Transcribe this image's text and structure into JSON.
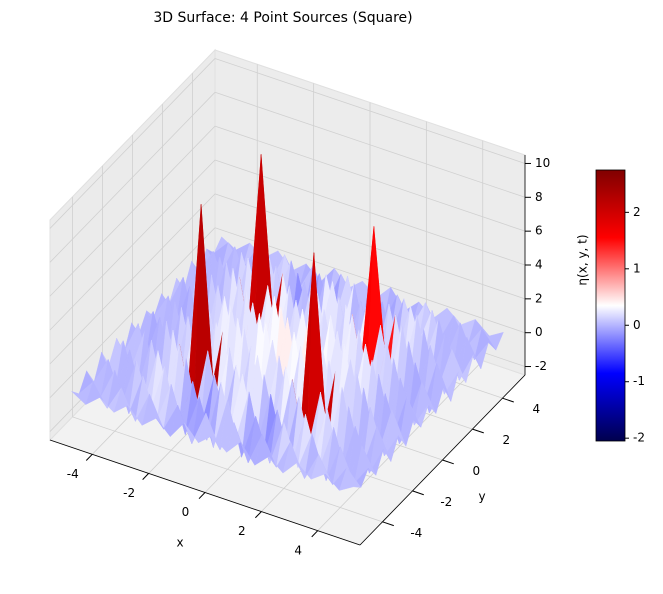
{
  "chart_data": {
    "type": "surface",
    "title": "3D Surface: 4 Point Sources (Square)",
    "x_label": "x",
    "y_label": "y",
    "colorbar_label": "η(x, y, t)",
    "colormap": "seismic",
    "xlim": [
      -5.5,
      5.5
    ],
    "ylim": [
      -5.5,
      5.5
    ],
    "zlim": [
      -2.5,
      10.5
    ],
    "xticks": [
      -4,
      -2,
      0,
      2,
      4
    ],
    "yticks": [
      -4,
      -2,
      0,
      2,
      4
    ],
    "zticks": [
      -2,
      0,
      2,
      4,
      6,
      8,
      10
    ],
    "clim": [
      -2.05,
      2.75
    ],
    "cticks": [
      -2,
      -1,
      0,
      1,
      2
    ],
    "x": [
      -5,
      -4.5,
      -4,
      -3.5,
      -3,
      -2.5,
      -2,
      -1.5,
      -1,
      -0.5,
      0,
      0.5,
      1,
      1.5,
      2,
      2.5,
      3,
      3.5,
      4,
      4.5,
      5
    ],
    "y": [
      -5,
      -4.5,
      -4,
      -3.5,
      -3,
      -2.5,
      -2,
      -1.5,
      -1,
      -0.5,
      0,
      0.5,
      1,
      1.5,
      2,
      2.5,
      3,
      3.5,
      4,
      4.5,
      5
    ],
    "z": [
      [
        0.2,
        -0.3,
        0.4,
        -0.2,
        0.5,
        -0.4,
        0.3,
        -0.5,
        0.6,
        -0.3,
        0.4,
        -0.3,
        0.6,
        -0.5,
        0.3,
        -0.4,
        0.5,
        -0.2,
        0.4,
        -0.3,
        0.2
      ],
      [
        -0.4,
        0.6,
        -0.7,
        0.8,
        -0.9,
        1.0,
        -0.8,
        0.9,
        -1.1,
        1.0,
        -0.9,
        1.0,
        -1.1,
        0.9,
        -0.8,
        1.0,
        -0.9,
        0.8,
        -0.7,
        0.6,
        -0.3
      ],
      [
        0.5,
        -0.8,
        1.1,
        -1.2,
        1.3,
        -1.0,
        1.4,
        -1.3,
        1.2,
        -1.5,
        1.6,
        -1.5,
        1.2,
        -1.3,
        1.4,
        -1.0,
        1.3,
        -1.2,
        1.1,
        -0.8,
        0.4
      ],
      [
        -0.6,
        1.0,
        -1.3,
        1.5,
        -1.2,
        1.7,
        -1.6,
        1.4,
        -1.8,
        1.9,
        -1.4,
        1.9,
        -1.8,
        1.4,
        -1.6,
        1.7,
        -1.2,
        1.5,
        -1.3,
        1.0,
        -0.5
      ],
      [
        0.7,
        -1.1,
        1.4,
        -1.6,
        1.9,
        -1.5,
        2.0,
        -1.9,
        1.6,
        -1.7,
        2.2,
        -1.7,
        1.6,
        -1.9,
        2.0,
        -1.5,
        1.9,
        -1.6,
        1.4,
        -1.1,
        0.6
      ],
      [
        -0.5,
        1.2,
        -1.5,
        1.8,
        -1.7,
        2.1,
        -2.0,
        2.3,
        -1.8,
        2.0,
        -1.6,
        2.0,
        -1.8,
        2.3,
        -2.0,
        2.1,
        -1.7,
        1.8,
        -1.5,
        1.2,
        -0.6
      ],
      [
        0.6,
        -1.0,
        1.6,
        -1.9,
        2.2,
        -1.8,
        10.2,
        -1.7,
        2.3,
        -1.9,
        2.4,
        -1.9,
        2.3,
        -1.7,
        9.6,
        -1.8,
        2.2,
        -1.9,
        1.6,
        -1.0,
        0.5
      ],
      [
        -0.7,
        1.3,
        -1.7,
        2.0,
        -1.9,
        2.4,
        -2.0,
        2.5,
        -2.1,
        2.2,
        -1.8,
        2.2,
        -2.1,
        2.5,
        -2.0,
        2.4,
        -1.9,
        2.0,
        -1.7,
        1.3,
        -0.6
      ],
      [
        0.6,
        -1.2,
        1.5,
        -1.8,
        2.1,
        -2.0,
        2.3,
        -1.9,
        2.6,
        -2.0,
        2.4,
        -2.0,
        2.6,
        -1.9,
        2.3,
        -2.0,
        2.1,
        -1.8,
        1.5,
        -1.2,
        0.5
      ],
      [
        -0.5,
        1.1,
        -1.6,
        1.9,
        -1.7,
        2.2,
        -1.9,
        2.4,
        -2.0,
        2.7,
        -1.9,
        2.7,
        -2.0,
        2.4,
        -1.9,
        2.2,
        -1.7,
        1.9,
        -1.6,
        1.1,
        -0.4
      ],
      [
        0.4,
        -1.0,
        1.5,
        -1.7,
        2.0,
        -1.6,
        2.4,
        -2.0,
        2.5,
        -1.9,
        2.8,
        -1.9,
        2.5,
        -2.0,
        2.4,
        -1.6,
        2.0,
        -1.7,
        1.5,
        -1.0,
        0.5
      ],
      [
        -0.4,
        1.1,
        -1.6,
        1.9,
        -1.7,
        2.2,
        -1.9,
        2.4,
        -2.0,
        2.7,
        -1.9,
        2.7,
        -2.0,
        2.4,
        -1.9,
        2.2,
        -1.7,
        1.9,
        -1.6,
        1.1,
        -0.5
      ],
      [
        0.5,
        -1.2,
        1.5,
        -1.8,
        2.1,
        -2.0,
        2.3,
        -1.9,
        2.6,
        -2.0,
        2.4,
        -2.0,
        2.6,
        -1.9,
        2.3,
        -2.0,
        2.1,
        -1.8,
        1.5,
        -1.2,
        0.6
      ],
      [
        -0.6,
        1.3,
        -1.7,
        2.0,
        -1.9,
        2.4,
        -2.0,
        2.5,
        -2.1,
        2.2,
        -1.8,
        2.2,
        -2.1,
        2.5,
        -2.0,
        2.4,
        -1.9,
        2.0,
        -1.7,
        1.3,
        -0.7
      ],
      [
        0.5,
        -1.0,
        1.6,
        -1.9,
        2.2,
        -1.8,
        9.5,
        -1.7,
        2.3,
        -1.9,
        2.4,
        -1.9,
        2.3,
        -1.7,
        7.5,
        -1.8,
        2.2,
        -1.9,
        1.6,
        -1.0,
        0.6
      ],
      [
        -0.6,
        1.2,
        -1.5,
        1.8,
        -1.7,
        2.1,
        -2.0,
        2.3,
        -1.8,
        2.0,
        -1.6,
        2.0,
        -1.8,
        2.3,
        -2.0,
        2.1,
        -1.7,
        1.8,
        -1.5,
        1.2,
        -0.5
      ],
      [
        0.6,
        -1.1,
        1.4,
        -1.6,
        1.9,
        -1.5,
        2.0,
        -1.9,
        1.6,
        -1.7,
        2.2,
        -1.7,
        1.6,
        -1.9,
        2.0,
        -1.5,
        1.9,
        -1.6,
        1.4,
        -1.1,
        0.7
      ],
      [
        -0.5,
        1.0,
        -1.3,
        1.5,
        -1.2,
        1.7,
        -1.6,
        1.4,
        -1.8,
        1.9,
        -1.4,
        1.9,
        -1.8,
        1.4,
        -1.6,
        1.7,
        -1.2,
        1.5,
        -1.3,
        1.0,
        -0.6
      ],
      [
        0.4,
        -0.8,
        1.1,
        -1.2,
        1.3,
        -1.0,
        1.4,
        -1.3,
        1.2,
        -1.5,
        1.6,
        -1.5,
        1.2,
        -1.3,
        1.4,
        -1.0,
        1.3,
        -1.2,
        1.1,
        -0.8,
        0.5
      ],
      [
        -0.3,
        0.6,
        -0.7,
        0.8,
        -0.9,
        1.0,
        -0.8,
        0.9,
        -1.1,
        1.0,
        -0.9,
        1.0,
        -1.1,
        0.9,
        -0.8,
        1.0,
        -0.9,
        0.8,
        -0.7,
        0.6,
        -0.4
      ],
      [
        0.2,
        -0.3,
        0.4,
        -0.2,
        0.5,
        -0.4,
        0.3,
        -0.5,
        0.6,
        -0.3,
        0.4,
        -0.3,
        0.6,
        -0.5,
        0.3,
        -0.4,
        0.5,
        -0.2,
        0.4,
        -0.3,
        0.2
      ]
    ]
  }
}
